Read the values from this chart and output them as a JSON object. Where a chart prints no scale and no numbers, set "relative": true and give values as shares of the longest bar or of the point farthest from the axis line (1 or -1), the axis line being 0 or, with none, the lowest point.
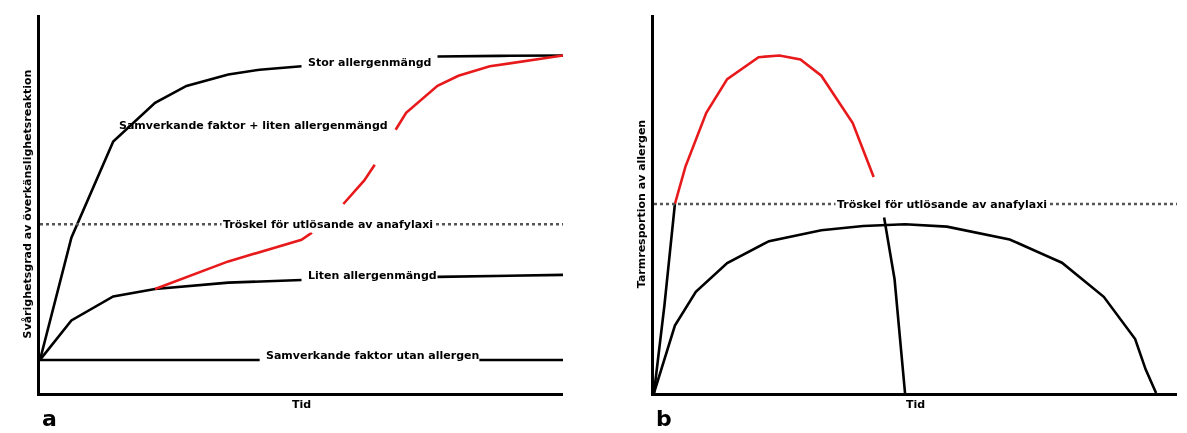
{
  "chart_data": [
    {
      "type": "line",
      "relative": true,
      "xlabel": "Tid",
      "ylabel": "Svårighetsgrad av överkänslighetsreaktion",
      "tick_labels": false,
      "legend": false,
      "categories": [
        null,
        null,
        null,
        null,
        null,
        null,
        null,
        null,
        null,
        null,
        null,
        null,
        null,
        null,
        null,
        null,
        null,
        null,
        null,
        null,
        null,
        null,
        null,
        null,
        null,
        null,
        null,
        null,
        null,
        null,
        null,
        null,
        null,
        null,
        null,
        null,
        null,
        null,
        null,
        null,
        null,
        null,
        null,
        null,
        null,
        null,
        null,
        null,
        null,
        null,
        null
      ],
      "series": [
        {
          "name": "Stor allergenmängd",
          "color": "#000000",
          "values": [
            0.098,
            null,
            null,
            0.46,
            null,
            null,
            null,
            0.745,
            null,
            null,
            null,
            0.86,
            null,
            null,
            0.91,
            null,
            null,
            null,
            0.944,
            null,
            null,
            0.958,
            null,
            null,
            null,
            0.968,
            null,
            null,
            null,
            null,
            null,
            null,
            null,
            null,
            null,
            null,
            null,
            null,
            null,
            null,
            null,
            null,
            null,
            null,
            null,
            null,
            null,
            null,
            null,
            null,
            null
          ]
        },
        {
          "color": "#000000",
          "values": [
            null,
            null,
            null,
            null,
            null,
            null,
            null,
            null,
            null,
            null,
            null,
            null,
            null,
            null,
            null,
            null,
            null,
            null,
            null,
            null,
            null,
            null,
            null,
            null,
            null,
            null,
            null,
            null,
            null,
            null,
            null,
            null,
            null,
            null,
            null,
            null,
            null,
            null,
            0.997,
            null,
            null,
            null,
            null,
            null,
            0.999,
            null,
            null,
            null,
            null,
            null,
            1.0
          ]
        },
        {
          "name": "Liten allergenmängd",
          "color": "#000000",
          "values": [
            0.098,
            null,
            null,
            0.215,
            null,
            null,
            null,
            0.286,
            null,
            null,
            null,
            0.308,
            null,
            null,
            null,
            null,
            null,
            null,
            0.327,
            null,
            null,
            null,
            null,
            null,
            null,
            0.335,
            null,
            null,
            null,
            null,
            null,
            null,
            null,
            null,
            null,
            null,
            null,
            null,
            null,
            null,
            null,
            null,
            null,
            null,
            null,
            null,
            null,
            null,
            null,
            null,
            null
          ]
        },
        {
          "color": "#000000",
          "values": [
            null,
            null,
            null,
            null,
            null,
            null,
            null,
            null,
            null,
            null,
            null,
            null,
            null,
            null,
            null,
            null,
            null,
            null,
            null,
            null,
            null,
            null,
            null,
            null,
            null,
            null,
            null,
            null,
            null,
            null,
            null,
            null,
            null,
            null,
            null,
            null,
            null,
            null,
            0.344,
            null,
            null,
            null,
            null,
            null,
            null,
            null,
            null,
            null,
            null,
            null,
            0.35
          ]
        },
        {
          "color": "#e8191b",
          "values": [
            null,
            null,
            null,
            null,
            null,
            null,
            null,
            null,
            null,
            null,
            null,
            0.308,
            null,
            null,
            null,
            null,
            null,
            null,
            0.39,
            null,
            null,
            null,
            null,
            null,
            null,
            0.454,
            0.475,
            null,
            null,
            null,
            null,
            null,
            null,
            null,
            null,
            null,
            null,
            null,
            null,
            null,
            null,
            null,
            null,
            null,
            null,
            null,
            null,
            null,
            null,
            null,
            null
          ]
        },
        {
          "color": "#e8191b",
          "values": [
            null,
            null,
            null,
            null,
            null,
            null,
            null,
            null,
            null,
            null,
            null,
            null,
            null,
            null,
            null,
            null,
            null,
            null,
            null,
            null,
            null,
            null,
            null,
            null,
            null,
            null,
            null,
            null,
            null,
            0.56,
            null,
            0.63,
            0.676,
            null,
            null,
            null,
            null,
            null,
            null,
            null,
            null,
            null,
            null,
            null,
            null,
            null,
            null,
            null,
            null,
            null,
            null
          ]
        },
        {
          "name": "Samverkande faktor + liten allergenmängd",
          "color": "#e8191b",
          "values": [
            null,
            null,
            null,
            null,
            null,
            null,
            null,
            null,
            null,
            null,
            null,
            null,
            null,
            null,
            null,
            null,
            null,
            null,
            null,
            null,
            null,
            null,
            null,
            null,
            null,
            null,
            null,
            null,
            null,
            null,
            null,
            null,
            null,
            null,
            0.78,
            0.83,
            null,
            null,
            0.91,
            null,
            0.94,
            null,
            null,
            0.968,
            null,
            null,
            null,
            null,
            null,
            null,
            1.0
          ]
        },
        {
          "name": "Samverkande faktor utan allergen",
          "color": "#000000",
          "values": [
            0.098,
            null,
            null,
            null,
            null,
            null,
            null,
            null,
            null,
            null,
            null,
            null,
            null,
            null,
            null,
            null,
            null,
            null,
            null,
            null,
            null,
            0.098,
            null,
            null,
            null,
            null,
            null,
            null,
            null,
            null,
            null,
            null,
            null,
            null,
            null,
            null,
            null,
            null,
            null,
            null,
            null,
            null,
            null,
            null,
            null,
            null,
            null,
            null,
            null,
            null,
            null
          ]
        },
        {
          "color": "#000000",
          "values": [
            null,
            null,
            null,
            null,
            null,
            null,
            null,
            null,
            null,
            null,
            null,
            null,
            null,
            null,
            null,
            null,
            null,
            null,
            null,
            null,
            null,
            null,
            null,
            null,
            null,
            null,
            null,
            null,
            null,
            null,
            null,
            null,
            null,
            null,
            null,
            null,
            null,
            null,
            null,
            null,
            null,
            null,
            0.098,
            null,
            null,
            null,
            null,
            null,
            null,
            null,
            0.098
          ]
        }
      ],
      "ref_lines": [
        {
          "axis": "y",
          "value": 0.5,
          "label": "Tröskel för utlösande av anafylaxi",
          "line_style": "dotted",
          "color": "#555555"
        }
      ],
      "annotations": [
        "a"
      ]
    },
    {
      "type": "line",
      "relative": true,
      "xlabel": "Tid",
      "ylabel": "Tarmresportion av allergen",
      "tick_labels": false,
      "categories": [
        null,
        null,
        null,
        null,
        null,
        null,
        null,
        null,
        null,
        null,
        null,
        null,
        null,
        null,
        null,
        null,
        null,
        null,
        null,
        null,
        null,
        null,
        null,
        null,
        null,
        null,
        null,
        null,
        null,
        null,
        null,
        null,
        null,
        null,
        null,
        null,
        null,
        null,
        null,
        null,
        null,
        null,
        null,
        null,
        null,
        null,
        null,
        null,
        null,
        null,
        null
      ],
      "series": [
        {
          "color": "#000000",
          "values": [
            0,
            0.26,
            0.56,
            null,
            null,
            null,
            null,
            null,
            null,
            null,
            null,
            null,
            null,
            null,
            null,
            null,
            null,
            null,
            null,
            null,
            null,
            null,
            null,
            null,
            null,
            null,
            null,
            null,
            null,
            null,
            null,
            null,
            null,
            null,
            null,
            null,
            null,
            null,
            null,
            null,
            null,
            null,
            null,
            null,
            null,
            null,
            null,
            null,
            null,
            null,
            null
          ]
        },
        {
          "color": "#e8191b",
          "values": [
            null,
            null,
            0.56,
            0.67,
            null,
            0.83,
            null,
            0.93,
            null,
            null,
            0.995,
            null,
            1.0,
            null,
            0.988,
            null,
            0.94,
            null,
            null,
            0.8,
            null,
            0.64,
            null,
            null,
            null,
            null,
            null,
            null,
            null,
            null,
            null,
            null,
            null,
            null,
            null,
            null,
            null,
            null,
            null,
            null,
            null,
            null,
            null,
            null,
            null,
            null,
            null,
            null,
            null,
            null,
            null
          ]
        },
        {
          "color": "#000000",
          "values": [
            null,
            null,
            null,
            null,
            null,
            null,
            null,
            null,
            null,
            null,
            null,
            null,
            null,
            null,
            null,
            null,
            null,
            null,
            null,
            null,
            null,
            null,
            0.52,
            0.337,
            0,
            null,
            null,
            null,
            null,
            null,
            null,
            null,
            null,
            null,
            null,
            null,
            null,
            null,
            null,
            null,
            null,
            null,
            null,
            null,
            null,
            null,
            null,
            null,
            null,
            null,
            null
          ]
        },
        {
          "color": "#000000",
          "values": [
            0,
            null,
            0.2,
            null,
            0.3,
            null,
            null,
            0.385,
            null,
            null,
            null,
            0.45,
            null,
            null,
            null,
            null,
            0.482,
            null,
            null,
            null,
            0.495,
            null,
            null,
            null,
            0.5,
            null,
            null,
            null,
            0.493,
            null,
            null,
            null,
            null,
            null,
            0.455,
            null,
            null,
            null,
            null,
            0.386,
            null,
            null,
            null,
            0.285,
            null,
            null,
            0.16,
            0.07,
            0,
            null,
            null
          ]
        }
      ],
      "ref_lines": [
        {
          "axis": "y",
          "value": 0.56,
          "label": "Tröskel för utlösande av anafylaxi",
          "line_style": "dotted",
          "color": "#555555"
        }
      ],
      "annotations": [
        "b"
      ]
    }
  ]
}
